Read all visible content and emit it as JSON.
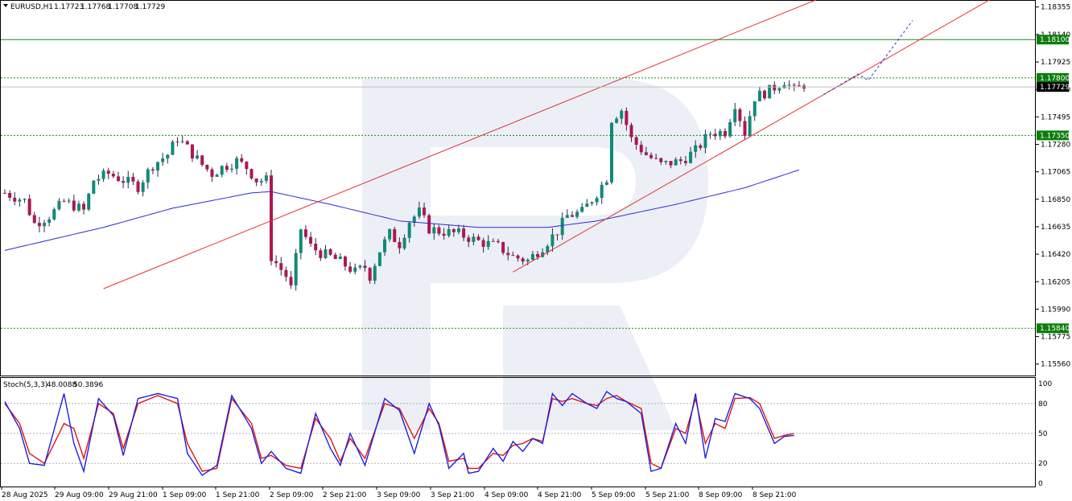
{
  "header": {
    "symbol": "EURUSD,H1",
    "open": "1.17723",
    "high": "1.17768",
    "low": "1.17708",
    "close": "1.17729"
  },
  "stoch_header": {
    "label": "Stoch(5,3,3)",
    "main": "48.0088",
    "signal": "50.3896"
  },
  "colors": {
    "bull": "#0f8a78",
    "bear": "#b0164f",
    "ma": "#2b2bd6",
    "channel": "#e63232",
    "level": "#1a8a1a",
    "level_tag": "#0b7d0b",
    "price_tag": "#000000",
    "stoch_main": "#1f1fe0",
    "stoch_signal": "#e01414",
    "watermark": "#dde4ef"
  },
  "chart_data": {
    "type": "candlestick",
    "symbol": "EURUSD",
    "timeframe": "H1",
    "y_ticks": [
      "1.18355",
      "1.18140",
      "1.17925",
      "1.17710",
      "1.17495",
      "1.17280",
      "1.17065",
      "1.16850",
      "1.16635",
      "1.16420",
      "1.16205",
      "1.15990",
      "1.15775",
      "1.15560"
    ],
    "ylim": [
      1.1547,
      1.1841
    ],
    "x_labels": [
      "28 Aug 2025",
      "29 Aug 09:00",
      "29 Aug 21:00",
      "1 Sep 09:00",
      "1 Sep 21:00",
      "2 Sep 09:00",
      "2 Sep 21:00",
      "3 Sep 09:00",
      "3 Sep 21:00",
      "4 Sep 09:00",
      "4 Sep 21:00",
      "5 Sep 09:00",
      "5 Sep 21:00",
      "8 Sep 09:00",
      "8 Sep 21:00"
    ],
    "levels": [
      {
        "price": 1.181,
        "label": "1.18100",
        "style": "solid"
      },
      {
        "price": 1.178,
        "label": "1.17800",
        "style": "dotted"
      },
      {
        "price": 1.1735,
        "label": "1.17350",
        "style": "dotted"
      },
      {
        "price": 1.1584,
        "label": "1.15840",
        "style": "dotted"
      }
    ],
    "current_price": {
      "price": 1.17729,
      "label": "1.17729"
    },
    "close_path": [
      [
        0,
        1.169
      ],
      [
        4,
        1.1684
      ],
      [
        6,
        1.1666
      ],
      [
        9,
        1.1672
      ],
      [
        12,
        1.1683
      ],
      [
        14,
        1.168
      ],
      [
        16,
        1.1676
      ],
      [
        18,
        1.17
      ],
      [
        21,
        1.1705
      ],
      [
        24,
        1.17
      ],
      [
        27,
        1.1695
      ],
      [
        30,
        1.1712
      ],
      [
        33,
        1.172
      ],
      [
        35,
        1.1733
      ],
      [
        37,
        1.1725
      ],
      [
        40,
        1.1712
      ],
      [
        42,
        1.1705
      ],
      [
        44,
        1.171
      ],
      [
        47,
        1.1715
      ],
      [
        49,
        1.171
      ],
      [
        51,
        1.17
      ],
      [
        53,
        1.17
      ],
      [
        54,
        1.164
      ],
      [
        57,
        1.1625
      ],
      [
        58,
        1.1615
      ],
      [
        60,
        1.1662
      ],
      [
        62,
        1.1648
      ],
      [
        64,
        1.1643
      ],
      [
        66,
        1.164
      ],
      [
        68,
        1.1636
      ],
      [
        71,
        1.1628
      ],
      [
        73,
        1.1632
      ],
      [
        74,
        1.1625
      ],
      [
        76,
        1.1645
      ],
      [
        78,
        1.1658
      ],
      [
        80,
        1.165
      ],
      [
        82,
        1.1668
      ],
      [
        84,
        1.1675
      ],
      [
        86,
        1.1662
      ],
      [
        88,
        1.166
      ],
      [
        92,
        1.1658
      ],
      [
        96,
        1.1652
      ],
      [
        100,
        1.1648
      ],
      [
        103,
        1.164
      ],
      [
        106,
        1.1637
      ],
      [
        109,
        1.1648
      ],
      [
        112,
        1.166
      ],
      [
        114,
        1.1672
      ],
      [
        117,
        1.1675
      ],
      [
        120,
        1.169
      ],
      [
        122,
        1.1702
      ],
      [
        123,
        1.1748
      ],
      [
        125,
        1.1755
      ],
      [
        127,
        1.1732
      ],
      [
        130,
        1.172
      ],
      [
        133,
        1.1712
      ],
      [
        137,
        1.1715
      ],
      [
        140,
        1.1723
      ],
      [
        143,
        1.1737
      ],
      [
        146,
        1.1738
      ],
      [
        148,
        1.176
      ],
      [
        150,
        1.1737
      ],
      [
        152,
        1.1765
      ],
      [
        155,
        1.177
      ],
      [
        158,
        1.1778
      ],
      [
        160,
        1.177
      ],
      [
        162,
        1.1775
      ]
    ],
    "ma_path": [
      [
        0,
        1.1645
      ],
      [
        20,
        1.1663
      ],
      [
        34,
        1.1678
      ],
      [
        50,
        1.169
      ],
      [
        54,
        1.1691
      ],
      [
        66,
        1.1681
      ],
      [
        80,
        1.1668
      ],
      [
        96,
        1.1663
      ],
      [
        110,
        1.1663
      ],
      [
        120,
        1.1668
      ],
      [
        136,
        1.1681
      ],
      [
        150,
        1.1694
      ],
      [
        161,
        1.1708
      ]
    ],
    "channel_upper": {
      "from": [
        20,
        1.1615
      ],
      "to": [
        165,
        1.1842
      ]
    },
    "channel_lower": {
      "from": [
        103,
        1.1628
      ],
      "to": [
        200,
        1.1842
      ]
    },
    "forecast_path": [
      [
        166,
        1.1767
      ],
      [
        173,
        1.1783
      ],
      [
        175,
        1.1778
      ],
      [
        184,
        1.1825
      ]
    ],
    "stochastic": {
      "label": "Stoch(5,3,3)",
      "ylim": [
        0,
        100
      ],
      "levels": [
        20,
        50,
        80
      ],
      "tick_labels": [
        "100",
        "80",
        "50",
        "20",
        "0"
      ],
      "main": [
        [
          0,
          82
        ],
        [
          3,
          55
        ],
        [
          5,
          20
        ],
        [
          8,
          18
        ],
        [
          12,
          90
        ],
        [
          14,
          40
        ],
        [
          16,
          12
        ],
        [
          19,
          85
        ],
        [
          22,
          68
        ],
        [
          24,
          28
        ],
        [
          27,
          85
        ],
        [
          31,
          90
        ],
        [
          35,
          85
        ],
        [
          37,
          30
        ],
        [
          40,
          8
        ],
        [
          43,
          18
        ],
        [
          46,
          88
        ],
        [
          50,
          55
        ],
        [
          52,
          20
        ],
        [
          54,
          32
        ],
        [
          57,
          15
        ],
        [
          60,
          10
        ],
        [
          63,
          70
        ],
        [
          66,
          35
        ],
        [
          68,
          18
        ],
        [
          70,
          50
        ],
        [
          73,
          18
        ],
        [
          77,
          85
        ],
        [
          80,
          73
        ],
        [
          83,
          30
        ],
        [
          86,
          80
        ],
        [
          88,
          58
        ],
        [
          90,
          15
        ],
        [
          93,
          30
        ],
        [
          94,
          10
        ],
        [
          96,
          12
        ],
        [
          99,
          35
        ],
        [
          101,
          22
        ],
        [
          103,
          42
        ],
        [
          105,
          32
        ],
        [
          107,
          45
        ],
        [
          109,
          40
        ],
        [
          111,
          90
        ],
        [
          113,
          78
        ],
        [
          115,
          90
        ],
        [
          118,
          80
        ],
        [
          120,
          75
        ],
        [
          122,
          92
        ],
        [
          124,
          85
        ],
        [
          126,
          82
        ],
        [
          129,
          70
        ],
        [
          131,
          12
        ],
        [
          133,
          15
        ],
        [
          136,
          60
        ],
        [
          138,
          40
        ],
        [
          140,
          90
        ],
        [
          142,
          25
        ],
        [
          144,
          65
        ],
        [
          146,
          62
        ],
        [
          148,
          90
        ],
        [
          151,
          85
        ],
        [
          153,
          75
        ],
        [
          156,
          40
        ],
        [
          158,
          47
        ],
        [
          160,
          48
        ]
      ],
      "signal": [
        [
          0,
          80
        ],
        [
          3,
          60
        ],
        [
          5,
          30
        ],
        [
          8,
          20
        ],
        [
          12,
          60
        ],
        [
          14,
          55
        ],
        [
          16,
          25
        ],
        [
          19,
          80
        ],
        [
          22,
          70
        ],
        [
          24,
          35
        ],
        [
          27,
          80
        ],
        [
          31,
          88
        ],
        [
          35,
          80
        ],
        [
          37,
          40
        ],
        [
          40,
          12
        ],
        [
          43,
          15
        ],
        [
          46,
          85
        ],
        [
          50,
          60
        ],
        [
          52,
          25
        ],
        [
          54,
          28
        ],
        [
          57,
          18
        ],
        [
          60,
          15
        ],
        [
          63,
          65
        ],
        [
          66,
          45
        ],
        [
          68,
          22
        ],
        [
          70,
          45
        ],
        [
          73,
          25
        ],
        [
          77,
          80
        ],
        [
          80,
          75
        ],
        [
          83,
          45
        ],
        [
          86,
          75
        ],
        [
          88,
          60
        ],
        [
          90,
          22
        ],
        [
          93,
          25
        ],
        [
          94,
          15
        ],
        [
          96,
          15
        ],
        [
          99,
          30
        ],
        [
          101,
          28
        ],
        [
          103,
          38
        ],
        [
          105,
          40
        ],
        [
          107,
          45
        ],
        [
          109,
          42
        ],
        [
          111,
          85
        ],
        [
          113,
          82
        ],
        [
          115,
          85
        ],
        [
          118,
          80
        ],
        [
          120,
          78
        ],
        [
          122,
          85
        ],
        [
          124,
          88
        ],
        [
          126,
          82
        ],
        [
          129,
          75
        ],
        [
          131,
          20
        ],
        [
          133,
          15
        ],
        [
          136,
          55
        ],
        [
          138,
          50
        ],
        [
          140,
          85
        ],
        [
          142,
          40
        ],
        [
          144,
          60
        ],
        [
          146,
          55
        ],
        [
          148,
          85
        ],
        [
          151,
          86
        ],
        [
          153,
          80
        ],
        [
          156,
          45
        ],
        [
          158,
          48
        ],
        [
          160,
          50
        ]
      ]
    }
  }
}
